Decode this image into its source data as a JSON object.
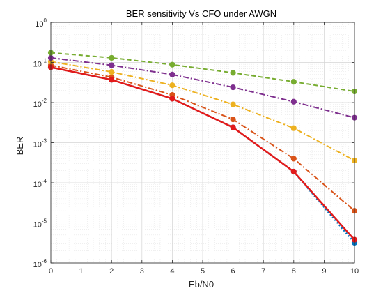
{
  "chart_data": {
    "type": "line",
    "title": "BER sensitivity Vs CFO under AWGN",
    "xlabel": "Eb/N0",
    "ylabel": "BER",
    "xlim": [
      0,
      10
    ],
    "ylim": [
      1e-06,
      1
    ],
    "yscale": "log",
    "grid": true,
    "minor_grid": true,
    "x_ticks": [
      0,
      1,
      2,
      3,
      4,
      5,
      6,
      7,
      8,
      9,
      10
    ],
    "y_tick_labels": [
      {
        "base": "10",
        "exp": "-6"
      },
      {
        "base": "10",
        "exp": "-5"
      },
      {
        "base": "10",
        "exp": "-4"
      },
      {
        "base": "10",
        "exp": "-3"
      },
      {
        "base": "10",
        "exp": "-2"
      },
      {
        "base": "10",
        "exp": "-1"
      },
      {
        "base": "10",
        "exp": "0"
      }
    ],
    "x": [
      0,
      2,
      4,
      6,
      8,
      10
    ],
    "series": [
      {
        "color": "#0072BD",
        "style": "dotted",
        "width": 2.5,
        "values": [
          0.076,
          0.037,
          0.0125,
          0.0024,
          0.00019,
          3.2e-06
        ]
      },
      {
        "color": "#D95319",
        "style": "dashdot",
        "width": 2,
        "values": [
          0.085,
          0.043,
          0.0155,
          0.0038,
          0.0004,
          2e-05
        ]
      },
      {
        "color": "#EDB120",
        "style": "dashdot",
        "width": 2,
        "values": [
          0.105,
          0.058,
          0.027,
          0.009,
          0.0023,
          0.00036
        ]
      },
      {
        "color": "#7E2F8E",
        "style": "dashdot",
        "width": 2,
        "values": [
          0.13,
          0.085,
          0.05,
          0.024,
          0.0105,
          0.0042
        ]
      },
      {
        "color": "#77AC30",
        "style": "dashed",
        "width": 2,
        "values": [
          0.175,
          0.13,
          0.088,
          0.055,
          0.033,
          0.019
        ]
      },
      {
        "color": "#E31A1A",
        "style": "solid",
        "width": 2.5,
        "values": [
          0.076,
          0.037,
          0.0125,
          0.0024,
          0.00019,
          3.8e-06
        ]
      }
    ]
  }
}
